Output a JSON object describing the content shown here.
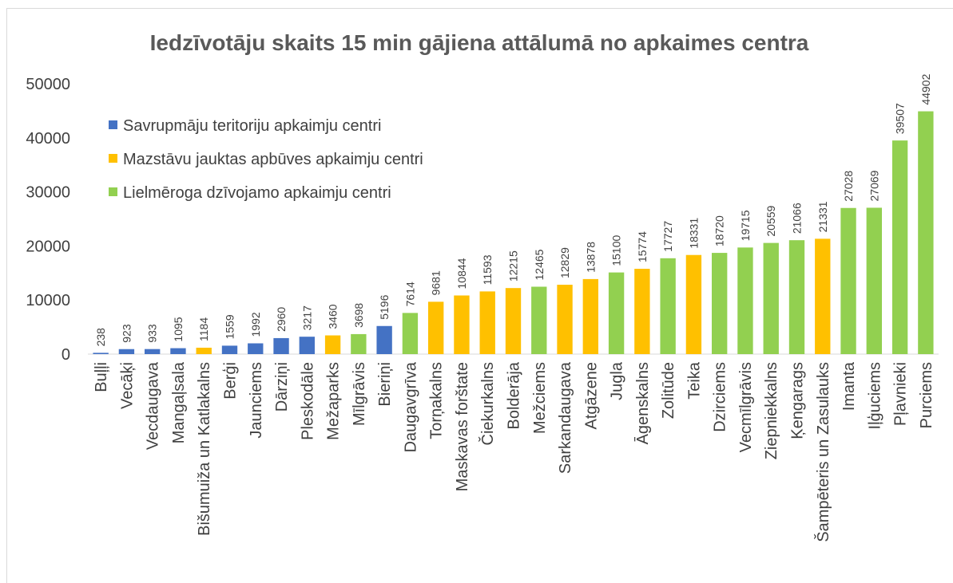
{
  "chart_data": {
    "type": "bar",
    "title": "Iedzīvotāju skaits 15 min gājiena attālumā no apkaimes centra",
    "categories": [
      "Buļļi",
      "Vecāķi",
      "Vecdaugava",
      "Mangaļsala",
      "Bišumuiža un Katlakalns",
      "Berģi",
      "Jaunciems",
      "Dārziņi",
      "Pleskodāle",
      "Mežaparks",
      "Mīlgrāvis",
      "Bieriņi",
      "Daugavgrīva",
      "Torņakalns",
      "Maskavas forštate",
      "Čiekurkalns",
      "Bolderāja",
      "Mežciems",
      "Sarkandaugava",
      "Atgāzene",
      "Jugla",
      "Āgenskalns",
      "Zolitūde",
      "Teika",
      "Dzirciems",
      "Vecmīlgrāvis",
      "Ziepniekkalns",
      "Ķengarags",
      "Šampēteris un Zasulauks",
      "Imanta",
      "Iļģuciems",
      "Pļavnieki",
      "Purciems"
    ],
    "series": [
      {
        "name": "Savrupmāju teritoriju apkaimju centri",
        "color": "#4472c4",
        "values": [
          238,
          923,
          933,
          1095,
          null,
          1559,
          1992,
          2960,
          3217,
          null,
          null,
          5196,
          null,
          null,
          null,
          null,
          null,
          null,
          null,
          null,
          null,
          null,
          null,
          null,
          null,
          null,
          null,
          null,
          null,
          null,
          null,
          null,
          null
        ]
      },
      {
        "name": "Mazstāvu jauktas apbūves apkaimju centri",
        "color": "#ffc000",
        "values": [
          null,
          null,
          null,
          null,
          1184,
          null,
          null,
          null,
          null,
          3460,
          null,
          null,
          null,
          9681,
          10844,
          11593,
          12215,
          null,
          12829,
          13878,
          null,
          15774,
          null,
          18331,
          null,
          null,
          null,
          null,
          21331,
          null,
          null,
          null,
          null
        ]
      },
      {
        "name": "Lielmēroga dzīvojamo apkaimju centri",
        "color": "#92d050",
        "values": [
          null,
          null,
          null,
          null,
          null,
          null,
          null,
          null,
          null,
          null,
          3698,
          null,
          7614,
          null,
          null,
          null,
          null,
          12465,
          null,
          null,
          15100,
          null,
          17727,
          null,
          18720,
          19715,
          20559,
          21066,
          null,
          27028,
          27069,
          39507,
          44902
        ]
      }
    ],
    "ylim": [
      0,
      50000
    ],
    "yticks": [
      0,
      10000,
      20000,
      30000,
      40000,
      50000
    ],
    "legend": "upper-left"
  }
}
